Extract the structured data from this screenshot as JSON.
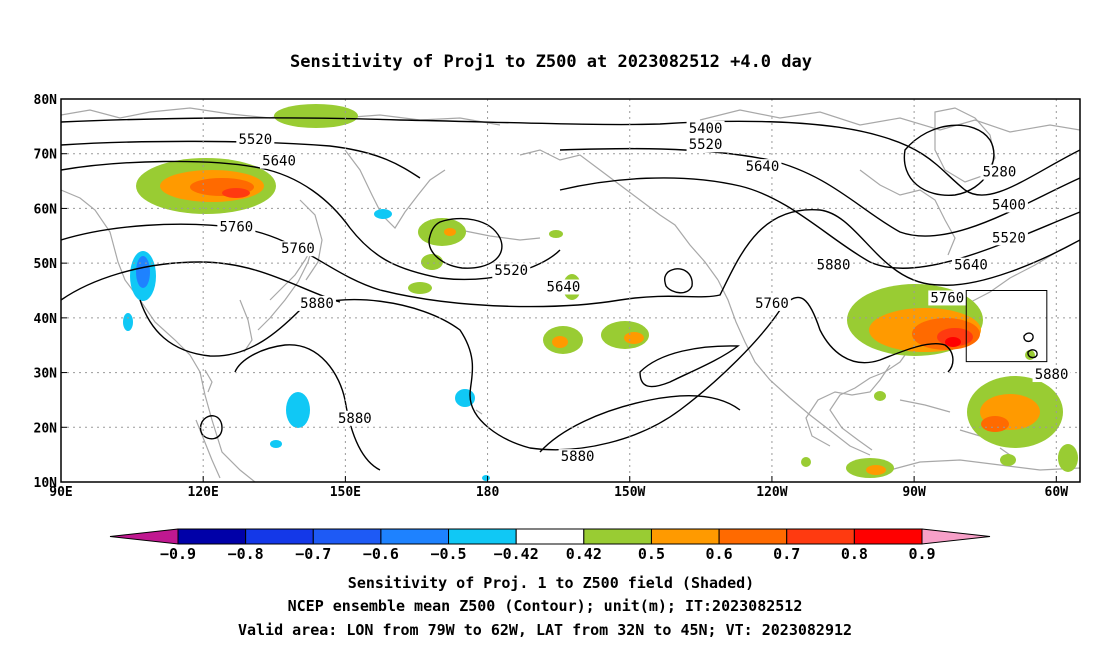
{
  "title": "Sensitivity of Proj1 to Z500 at 2023082512 +4.0 day",
  "map": {
    "lon_range": [
      90,
      305
    ],
    "lat_range": [
      10,
      80
    ],
    "lon_ticks": [
      {
        "lon": 90,
        "label": "90E"
      },
      {
        "lon": 120,
        "label": "120E"
      },
      {
        "lon": 150,
        "label": "150E"
      },
      {
        "lon": 180,
        "label": "180"
      },
      {
        "lon": 210,
        "label": "150W"
      },
      {
        "lon": 240,
        "label": "120W"
      },
      {
        "lon": 270,
        "label": "90W"
      },
      {
        "lon": 300,
        "label": "60W"
      }
    ],
    "lat_ticks": [
      {
        "lat": 80,
        "label": "80N"
      },
      {
        "lat": 70,
        "label": "70N"
      },
      {
        "lat": 60,
        "label": "60N"
      },
      {
        "lat": 50,
        "label": "50N"
      },
      {
        "lat": 40,
        "label": "40N"
      },
      {
        "lat": 30,
        "label": "30N"
      },
      {
        "lat": 20,
        "label": "20N"
      },
      {
        "lat": 10,
        "label": "10N"
      }
    ],
    "grid": true,
    "contour_labels": [
      {
        "text": "5400",
        "lon": 226,
        "lat": 74
      },
      {
        "text": "5520",
        "lon": 131,
        "lat": 72
      },
      {
        "text": "5640",
        "lon": 136,
        "lat": 68
      },
      {
        "text": "5520",
        "lon": 226,
        "lat": 71
      },
      {
        "text": "5640",
        "lon": 238,
        "lat": 67
      },
      {
        "text": "5280",
        "lon": 288,
        "lat": 66
      },
      {
        "text": "5400",
        "lon": 290,
        "lat": 60
      },
      {
        "text": "5760",
        "lon": 127,
        "lat": 56
      },
      {
        "text": "5520",
        "lon": 290,
        "lat": 54
      },
      {
        "text": "5760",
        "lon": 140,
        "lat": 52
      },
      {
        "text": "5520",
        "lon": 185,
        "lat": 48
      },
      {
        "text": "5880",
        "lon": 253,
        "lat": 49
      },
      {
        "text": "5640",
        "lon": 282,
        "lat": 49
      },
      {
        "text": "5640",
        "lon": 196,
        "lat": 45
      },
      {
        "text": "5880",
        "lon": 144,
        "lat": 42
      },
      {
        "text": "5760",
        "lon": 240,
        "lat": 42
      },
      {
        "text": "5760",
        "lon": 277,
        "lat": 43
      },
      {
        "text": "5880",
        "lon": 299,
        "lat": 29
      },
      {
        "text": "5880",
        "lon": 152,
        "lat": 21
      },
      {
        "text": "5880",
        "lon": 199,
        "lat": 14
      }
    ],
    "valid_box": {
      "lon_min": 281,
      "lon_max": 298,
      "lat_min": 32,
      "lat_max": 45
    }
  },
  "colorbar": {
    "labels": [
      "-0.9",
      "-0.8",
      "-0.7",
      "-0.6",
      "-0.5",
      "-0.42",
      "0.42",
      "0.5",
      "0.6",
      "0.7",
      "0.8",
      "0.9"
    ],
    "colors": {
      "below": "#c01890",
      "bins": [
        "#0000a8",
        "#1438e8",
        "#1e5af5",
        "#1e82ff",
        "#10c8f5",
        "#ffffff",
        "#99cc33",
        "#ff9a00",
        "#ff6a00",
        "#ff3a10",
        "#ff0000"
      ],
      "above": "#f7a0c8"
    }
  },
  "caption": {
    "line1": "Sensitivity of Proj. 1 to Z500 field (Shaded)",
    "line2": "NCEP ensemble mean Z500 (Contour); unit(m); IT:2023082512",
    "line3": "Valid area: LON from 79W to 62W, LAT from 32N to 45N; VT: 2023082912"
  }
}
